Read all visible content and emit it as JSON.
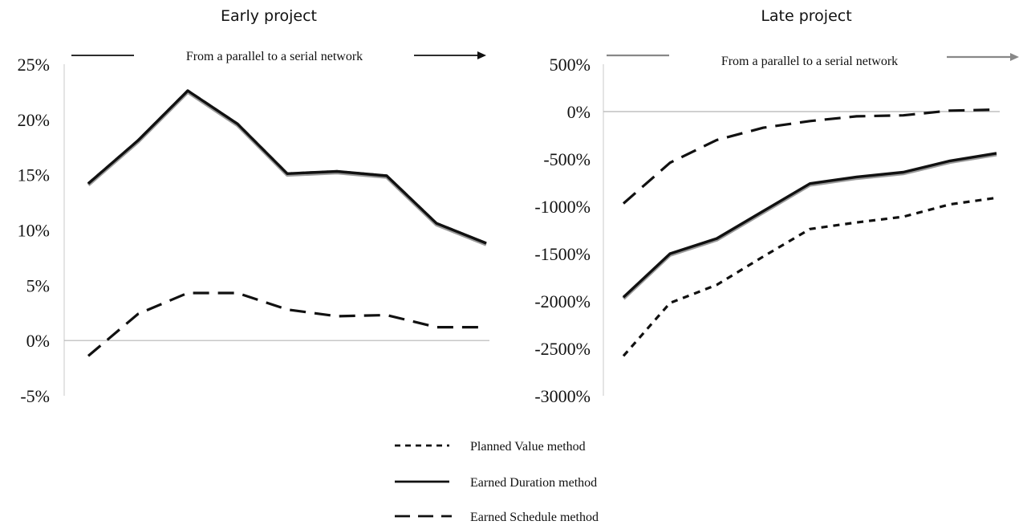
{
  "legend": {
    "items": [
      {
        "label": "Planned Value method",
        "style": "dotted"
      },
      {
        "label": "Earned Duration method",
        "style": "solid"
      },
      {
        "label": "Earned Schedule method",
        "style": "dashed"
      }
    ]
  },
  "chart_data": [
    {
      "type": "line",
      "title": "Early project",
      "annotation": "From a parallel to a serial network",
      "ylim": [
        -5,
        25
      ],
      "yticks": [
        25,
        20,
        15,
        10,
        5,
        0,
        -5
      ],
      "ytick_labels": [
        "25%",
        "20%",
        "15%",
        "10%",
        "5%",
        "0%",
        "-5%"
      ],
      "x": [
        1,
        2,
        3,
        4,
        5,
        6,
        7,
        8,
        9
      ],
      "series": [
        {
          "name": "Planned Value method",
          "style": "dotted",
          "values": [
            14.2,
            18.1,
            22.6,
            19.6,
            15.1,
            15.3,
            14.9,
            10.6,
            8.8
          ]
        },
        {
          "name": "Earned Duration method",
          "style": "solid",
          "values": [
            14.2,
            18.1,
            22.6,
            19.6,
            15.1,
            15.3,
            14.9,
            10.6,
            8.8
          ]
        },
        {
          "name": "Earned Schedule method",
          "style": "dashed",
          "values": [
            -1.4,
            2.4,
            4.3,
            4.3,
            2.8,
            2.2,
            2.3,
            1.2,
            1.2
          ]
        }
      ]
    },
    {
      "type": "line",
      "title": "Late project",
      "annotation": "From a parallel to a serial network",
      "ylim": [
        -3000,
        500
      ],
      "yticks": [
        500,
        0,
        -500,
        -1000,
        -1500,
        -2000,
        -2500,
        -3000
      ],
      "ytick_labels": [
        "500%",
        "0%",
        "-500%",
        "-1000%",
        "-1500%",
        "-2000%",
        "-2500%",
        "-3000%"
      ],
      "x": [
        1,
        2,
        3,
        4,
        5,
        6,
        7,
        8,
        9
      ],
      "series": [
        {
          "name": "Planned Value method",
          "style": "dotted",
          "values": [
            -2580,
            -2020,
            -1830,
            -1530,
            -1240,
            -1170,
            -1110,
            -980,
            -910
          ]
        },
        {
          "name": "Earned Duration method",
          "style": "solid",
          "values": [
            -1960,
            -1500,
            -1340,
            -1050,
            -760,
            -690,
            -640,
            -520,
            -440
          ]
        },
        {
          "name": "Earned Schedule method",
          "style": "dashed",
          "values": [
            -970,
            -540,
            -300,
            -170,
            -100,
            -50,
            -40,
            10,
            20
          ]
        }
      ]
    }
  ]
}
